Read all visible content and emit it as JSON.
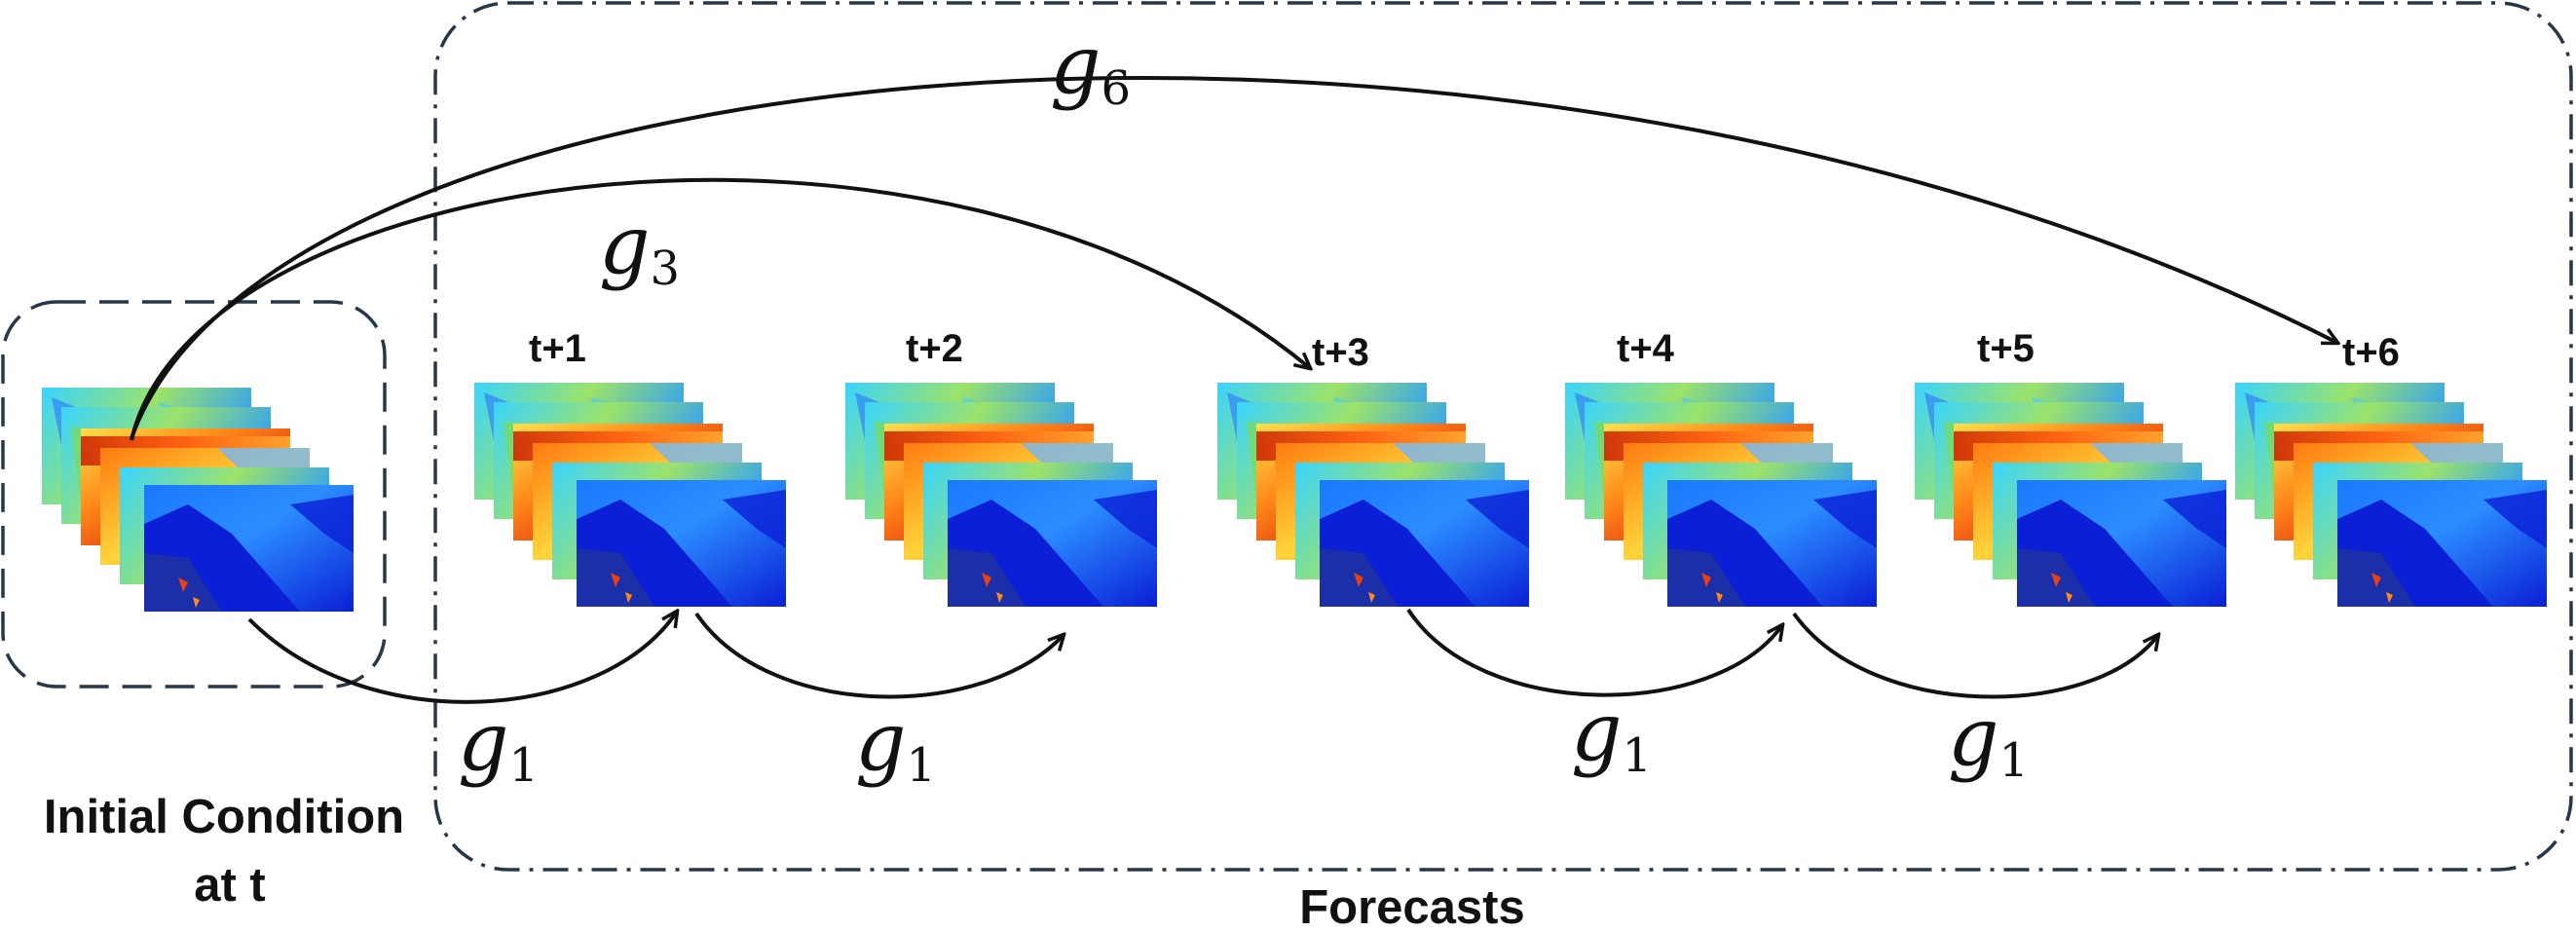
{
  "labels": {
    "initial_condition_line1": "Initial Condition",
    "initial_condition_line2": "at t",
    "forecasts": "Forecasts"
  },
  "timesteps": [
    "t+1",
    "t+2",
    "t+3",
    "t+4",
    "t+5",
    "t+6"
  ],
  "operators": {
    "g1": {
      "letter": "g",
      "sub": "1"
    },
    "g3": {
      "letter": "g",
      "sub": "3"
    },
    "g6": {
      "letter": "g",
      "sub": "6"
    }
  },
  "colors": {
    "stroke": "#111111",
    "box_dash": "#26374a",
    "map_warm_a": "#c81e00",
    "map_warm_b": "#ff8a1a",
    "map_warm_c": "#ffe04a",
    "map_cool_a": "#0a1fd6",
    "map_cool_b": "#1a78ff",
    "map_cool_c": "#39d4ff",
    "map_green": "#9be36a"
  }
}
